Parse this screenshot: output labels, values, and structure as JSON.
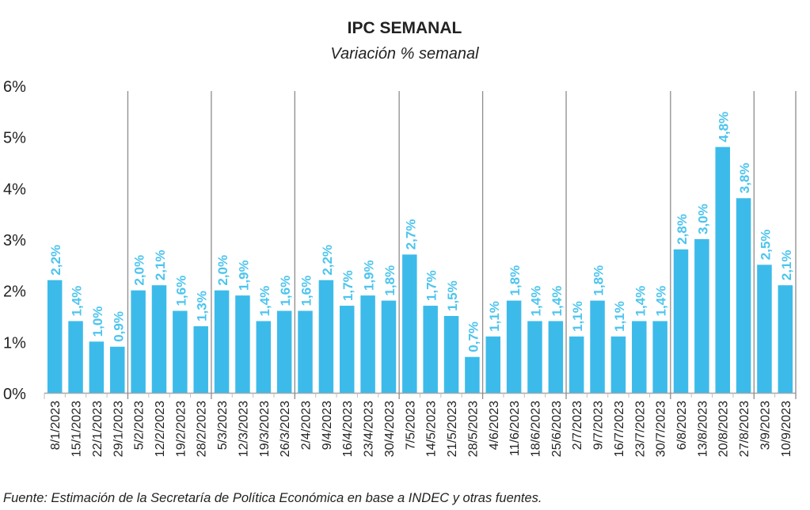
{
  "chart_data": {
    "type": "bar",
    "title": "IPC SEMANAL",
    "subtitle": "Variación % semanal",
    "xlabel": "",
    "ylabel": "",
    "ylim": [
      0,
      6
    ],
    "yticks": [
      "0%",
      "1%",
      "2%",
      "3%",
      "4%",
      "5%",
      "6%"
    ],
    "grid": false,
    "legend": "none",
    "bar_color": "#3cbbea",
    "label_color": "#4cc4ee",
    "month_separators": true,
    "categories": [
      "8/1/2023",
      "15/1/2023",
      "22/1/2023",
      "29/1/2023",
      "5/2/2023",
      "12/2/2023",
      "19/2/2023",
      "28/2/2023",
      "5/3/2023",
      "12/3/2023",
      "19/3/2023",
      "26/3/2023",
      "2/4/2023",
      "9/4/2023",
      "16/4/2023",
      "23/4/2023",
      "30/4/2023",
      "7/5/2023",
      "14/5/2023",
      "21/5/2023",
      "28/5/2023",
      "4/6/2023",
      "11/6/2023",
      "18/6/2023",
      "25/6/2023",
      "2/7/2023",
      "9/7/2023",
      "16/7/2023",
      "23/7/2023",
      "30/7/2023",
      "6/8/2023",
      "13/8/2023",
      "20/8/2023",
      "27/8/2023",
      "3/9/2023",
      "10/9/2023"
    ],
    "values": [
      2.2,
      1.4,
      1.0,
      0.9,
      2.0,
      2.1,
      1.6,
      1.3,
      2.0,
      1.9,
      1.4,
      1.6,
      1.6,
      2.2,
      1.7,
      1.9,
      1.8,
      2.7,
      1.7,
      1.5,
      0.7,
      1.1,
      1.8,
      1.4,
      1.4,
      1.1,
      1.8,
      1.1,
      1.4,
      1.4,
      2.8,
      3.0,
      4.8,
      3.8,
      2.5,
      2.1
    ],
    "data_labels": [
      "2,2%",
      "1,4%",
      "1,0%",
      "0,9%",
      "2,0%",
      "2,1%",
      "1,6%",
      "1,3%",
      "2,0%",
      "1,9%",
      "1,4%",
      "1,6%",
      "1,6%",
      "2,2%",
      "1,7%",
      "1,9%",
      "1,8%",
      "2,7%",
      "1,7%",
      "1,5%",
      "0,7%",
      "1,1%",
      "1,8%",
      "1,4%",
      "1,4%",
      "1,1%",
      "1,8%",
      "1,1%",
      "1,4%",
      "1,4%",
      "2,8%",
      "3,0%",
      "4,8%",
      "3,8%",
      "2,5%",
      "2,1%"
    ],
    "source": "Fuente: Estimación de la Secretaría de Política Económica en base a INDEC y otras fuentes."
  }
}
